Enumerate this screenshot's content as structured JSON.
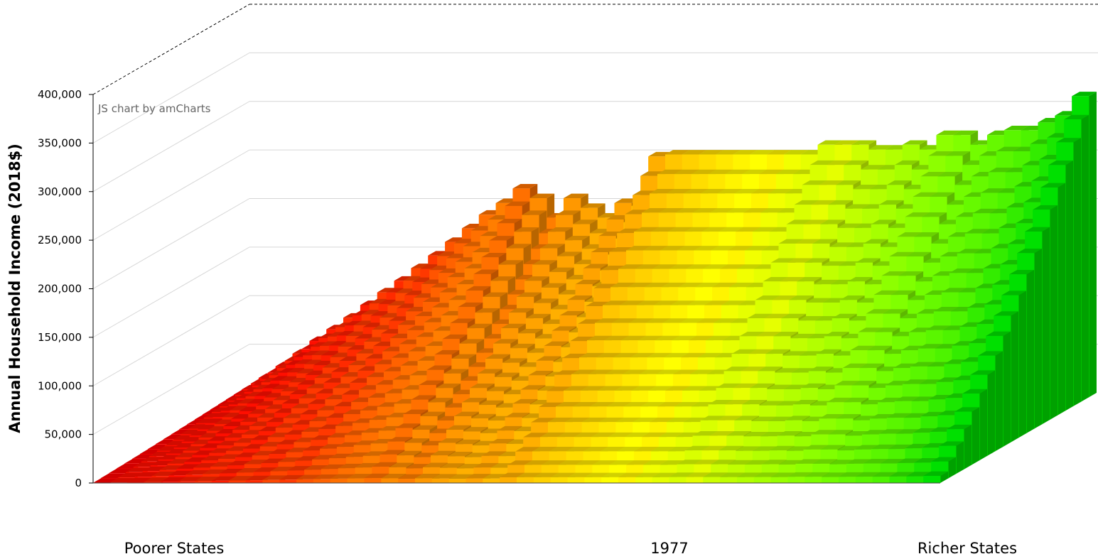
{
  "chart_data": {
    "type": "bar",
    "subtype": "3d-column-surface",
    "title": "",
    "credit": "JS chart by amCharts",
    "ylabel": "Annual Household Income (2018$)",
    "xlabel_left": "Poorer States",
    "xlabel_center": "1977",
    "xlabel_right": "Richer States",
    "ylim": [
      0,
      400000
    ],
    "yticks": [
      "0",
      "50,000",
      "100,000",
      "150,000",
      "200,000",
      "250,000",
      "300,000",
      "350,000",
      "400,000"
    ],
    "ytick_values": [
      0,
      50000,
      100000,
      150000,
      200000,
      250000,
      300000,
      350000,
      400000
    ],
    "grid": true,
    "categories_count": 50,
    "percentile_rows_count": 20,
    "color_scale": [
      "#ff0000",
      "#ff8c00",
      "#ffff00",
      "#80ff00",
      "#00e000"
    ],
    "state_top_income": [
      8000,
      20000,
      32000,
      45000,
      58000,
      70000,
      82000,
      95000,
      108000,
      120000,
      133000,
      146000,
      160000,
      174000,
      188000,
      200000,
      215000,
      205000,
      185000,
      205000,
      195000,
      185000,
      200000,
      197000,
      248000,
      250000,
      250000,
      250000,
      250000,
      250000,
      250000,
      250000,
      250000,
      250000,
      260000,
      260000,
      260000,
      255000,
      255000,
      260000,
      255000,
      270000,
      270000,
      260000,
      270000,
      275000,
      275000,
      283000,
      290000,
      310000
    ],
    "state_color_rank": [
      0,
      1,
      1,
      2,
      1,
      2,
      3,
      2,
      4,
      3,
      5,
      4,
      6,
      7,
      8,
      9,
      8,
      10,
      9,
      11,
      12,
      13,
      12,
      14,
      13,
      15,
      16,
      17,
      18,
      19,
      20,
      19,
      21,
      22,
      23,
      22,
      24,
      25,
      26,
      27,
      28,
      29,
      30,
      31,
      32,
      33,
      34,
      36,
      38,
      40
    ]
  }
}
